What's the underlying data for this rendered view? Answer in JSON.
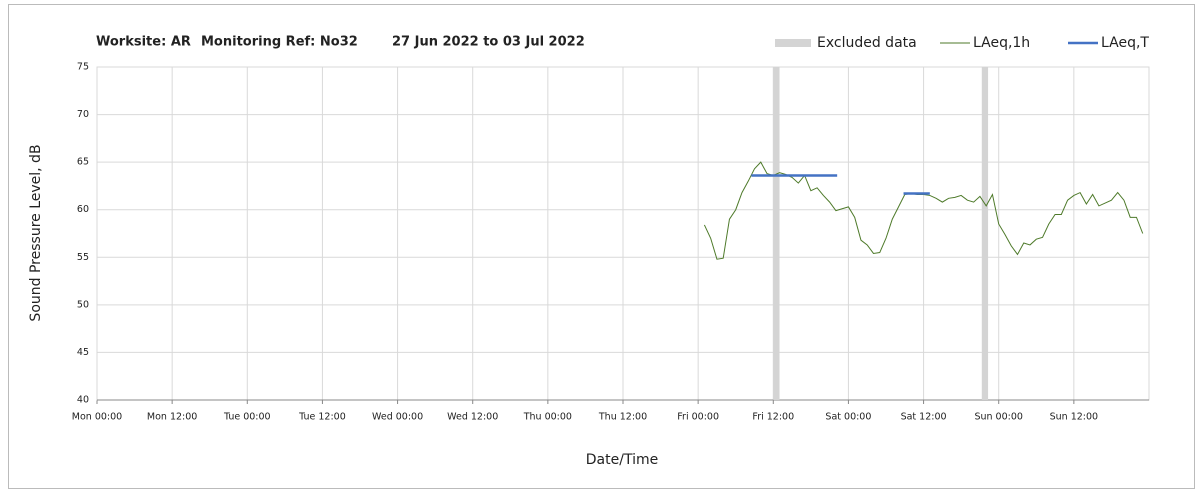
{
  "chart_data": {
    "type": "line",
    "title_parts": [
      "Worksite: AR",
      "Monitoring Ref: No32",
      "27 Jun 2022 to 03 Jul 2022"
    ],
    "xlabel": "Date/Time",
    "ylabel": "Sound Pressure Level, dB",
    "xlim": [
      0,
      168
    ],
    "xticks": [
      {
        "value": 0,
        "label": "Mon 00:00"
      },
      {
        "value": 12,
        "label": "Mon 12:00"
      },
      {
        "value": 24,
        "label": "Tue 00:00"
      },
      {
        "value": 36,
        "label": "Tue 12:00"
      },
      {
        "value": 48,
        "label": "Wed 00:00"
      },
      {
        "value": 60,
        "label": "Wed 12:00"
      },
      {
        "value": 72,
        "label": "Thu 00:00"
      },
      {
        "value": 84,
        "label": "Thu 12:00"
      },
      {
        "value": 96,
        "label": "Fri 00:00"
      },
      {
        "value": 108,
        "label": "Fri 12:00"
      },
      {
        "value": 120,
        "label": "Sat 00:00"
      },
      {
        "value": 132,
        "label": "Sat 12:00"
      },
      {
        "value": 144,
        "label": "Sun 00:00"
      },
      {
        "value": 156,
        "label": "Sun 12:00"
      }
    ],
    "ylim": [
      40,
      75
    ],
    "yticks": [
      40,
      45,
      50,
      55,
      60,
      65,
      70,
      75
    ],
    "grid": true,
    "legend": "top-right",
    "excluded": {
      "name": "Excluded data",
      "color": "#d4d4d4",
      "ranges": [
        [
          108,
          109
        ],
        [
          141.3,
          142.3
        ]
      ]
    },
    "series": [
      {
        "name": "LAeq,1h",
        "color": "#4e7a2a",
        "x": [
          97,
          98,
          99,
          100,
          101,
          102,
          103,
          104,
          105,
          106,
          107,
          108,
          109,
          110,
          111,
          112,
          113,
          114,
          115,
          116,
          117,
          118,
          119,
          120,
          121,
          122,
          123,
          124,
          125,
          126,
          127,
          128,
          129,
          130,
          131,
          132,
          133,
          134,
          135,
          136,
          137,
          138,
          139,
          140,
          141,
          142,
          143,
          144,
          145,
          146,
          147,
          148,
          149,
          150,
          151,
          152,
          153,
          154,
          155,
          156,
          157,
          158,
          159,
          160,
          161,
          162,
          163,
          164,
          165,
          166,
          167
        ],
        "values": [
          58.4,
          57,
          54.8,
          54.9,
          59,
          60,
          61.8,
          63,
          64.3,
          65,
          63.8,
          63.6,
          63.9,
          63.7,
          63.4,
          62.8,
          63.6,
          62,
          62.3,
          61.5,
          60.8,
          59.9,
          60.1,
          60.3,
          59.2,
          56.8,
          56.3,
          55.4,
          55.5,
          57,
          59,
          60.3,
          61.6,
          61.7,
          61.6,
          61.6,
          61.5,
          61.2,
          60.8,
          61.2,
          61.3,
          61.5,
          61,
          60.8,
          61.4,
          60.4,
          61.6,
          58.5,
          57.4,
          56.2,
          55.3,
          56.5,
          56.3,
          56.9,
          57.1,
          58.5,
          59.5,
          59.5,
          61,
          61.5,
          61.8,
          60.6,
          61.6,
          60.4,
          60.7,
          61,
          61.8,
          61,
          59.2,
          59.2,
          57.5
        ]
      },
      {
        "name": "LAeq,T",
        "color": "#4472c4",
        "x": [
          104.5,
          118.2,
          123,
          128.8,
          133
        ],
        "values": [
          63.6,
          63.6,
          null,
          61.7,
          61.7
        ]
      }
    ]
  }
}
